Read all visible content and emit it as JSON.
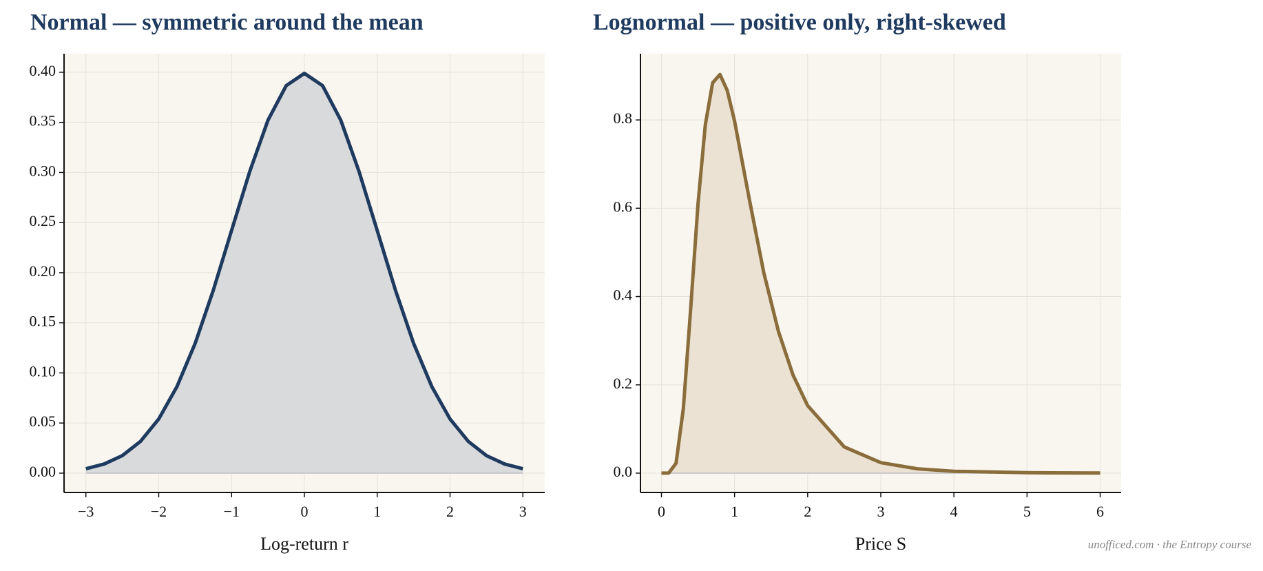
{
  "chart_data": [
    {
      "type": "line",
      "title": "Normal — symmetric around the mean",
      "x_label": "Log-return r",
      "x": [
        -3,
        -2.75,
        -2.5,
        -2.25,
        -2,
        -1.75,
        -1.5,
        -1.25,
        -1,
        -0.75,
        -0.5,
        -0.25,
        0,
        0.25,
        0.5,
        0.75,
        1,
        1.25,
        1.5,
        1.75,
        2,
        2.25,
        2.5,
        2.75,
        3
      ],
      "series": [
        {
          "color": "#1f3a5f",
          "fill": "#d8dadb",
          "values": [
            0.0044,
            0.0091,
            0.0175,
            0.0317,
            0.054,
            0.0863,
            0.1295,
            0.1826,
            0.242,
            0.3011,
            0.3521,
            0.3867,
            0.3989,
            0.3867,
            0.3521,
            0.3011,
            0.242,
            0.1826,
            0.1295,
            0.0863,
            0.054,
            0.0317,
            0.0175,
            0.0091,
            0.0044
          ]
        }
      ],
      "xlim": [
        -3.3,
        3.3
      ],
      "ylim": [
        -0.0193,
        0.4185
      ],
      "xticks": [
        {
          "value": -3,
          "label": "−3"
        },
        {
          "value": -2,
          "label": "−2"
        },
        {
          "value": -1,
          "label": "−1"
        },
        0,
        1,
        2,
        3
      ],
      "yticks": [
        {
          "value": 0,
          "label": "0.00"
        },
        {
          "value": 0.05,
          "label": "0.05"
        },
        {
          "value": 0.1,
          "label": "0.10"
        },
        {
          "value": 0.15,
          "label": "0.15"
        },
        {
          "value": 0.2,
          "label": "0.20"
        },
        {
          "value": 0.25,
          "label": "0.25"
        },
        {
          "value": 0.3,
          "label": "0.30"
        },
        {
          "value": 0.35,
          "label": "0.35"
        },
        {
          "value": 0.4,
          "label": "0.40"
        }
      ],
      "grid": true
    },
    {
      "type": "line",
      "title": "Lognormal — positive only, right-skewed",
      "x_label": "Price S",
      "x": [
        0,
        0.1,
        0.2,
        0.3,
        0.4,
        0.5,
        0.6,
        0.7,
        0.8,
        0.9,
        1,
        1.2,
        1.4,
        1.6,
        1.8,
        2,
        2.5,
        3,
        3.5,
        4,
        5,
        6
      ],
      "series": [
        {
          "color": "#8a6d3b",
          "fill": "#ebe2d3",
          "values": [
            0,
            0.0002,
            0.0225,
            0.1465,
            0.372,
            0.61,
            0.789,
            0.884,
            0.903,
            0.867,
            0.798,
            0.622,
            0.454,
            0.321,
            0.222,
            0.153,
            0.0595,
            0.0238,
            0.0099,
            0.0043,
            0.0009,
            0.0002
          ]
        }
      ],
      "xlim": [
        -0.287,
        6.287
      ],
      "ylim": [
        -0.0438,
        0.95
      ],
      "xticks": [
        0,
        1,
        2,
        3,
        4,
        5,
        6
      ],
      "yticks": [
        {
          "value": 0,
          "label": "0.0"
        },
        {
          "value": 0.2,
          "label": "0.2"
        },
        {
          "value": 0.4,
          "label": "0.4"
        },
        {
          "value": 0.6,
          "label": "0.6"
        },
        {
          "value": 0.8,
          "label": "0.8"
        }
      ],
      "grid": true
    }
  ],
  "watermark": "unofficed.com · the Entropy course"
}
